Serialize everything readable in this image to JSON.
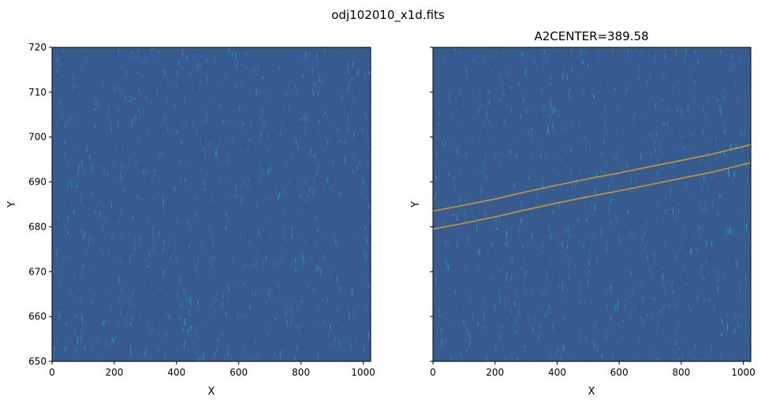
{
  "figure": {
    "suptitle": "odj102010_x1d.fits"
  },
  "colors": {
    "background_field": "#375b8f",
    "noise_cyan": "#1fa6c9",
    "noise_dark": "#2d4d80",
    "trace_line": "#c8963a"
  },
  "chart_data": [
    {
      "type": "heatmap",
      "title": "",
      "xlabel": "X",
      "ylabel": "Y",
      "xlim": [
        0,
        1024
      ],
      "ylim": [
        650,
        720
      ],
      "x_ticks": [
        0,
        200,
        400,
        600,
        800,
        1000
      ],
      "y_ticks": [
        650,
        660,
        670,
        680,
        690,
        700,
        710,
        720
      ],
      "x_tick_labels": [
        "0",
        "200",
        "400",
        "600",
        "800",
        "1000"
      ],
      "y_tick_labels": [
        "650",
        "660",
        "670",
        "680",
        "690",
        "700",
        "710",
        "720"
      ],
      "grid": false,
      "colormap": "viridis",
      "series": []
    },
    {
      "type": "heatmap",
      "title": "A2CENTER=389.58",
      "xlabel": "X",
      "ylabel": "Y",
      "xlim": [
        0,
        1024
      ],
      "ylim": [
        650,
        720
      ],
      "x_ticks": [
        0,
        200,
        400,
        600,
        800,
        1000
      ],
      "y_ticks": [
        650,
        660,
        670,
        680,
        690,
        700,
        710,
        720
      ],
      "x_tick_labels": [
        "0",
        "200",
        "400",
        "600",
        "800",
        "1000"
      ],
      "y_tick_labels": [
        "",
        "",
        "",
        "",
        "",
        "",
        "",
        ""
      ],
      "grid": false,
      "colormap": "viridis",
      "series": [
        {
          "type": "line",
          "color": "#c8963a",
          "x": [
            0,
            100,
            200,
            300,
            400,
            500,
            600,
            700,
            800,
            900,
            1024
          ],
          "y": [
            683.5,
            684.8,
            686.2,
            687.8,
            689.3,
            690.7,
            692.0,
            693.4,
            694.8,
            696.2,
            698.3
          ]
        },
        {
          "type": "line",
          "color": "#c8963a",
          "x": [
            0,
            100,
            200,
            300,
            400,
            500,
            600,
            700,
            800,
            900,
            1024
          ],
          "y": [
            679.5,
            680.8,
            682.2,
            683.8,
            685.3,
            686.7,
            688.0,
            689.4,
            690.8,
            692.2,
            694.3
          ]
        }
      ]
    }
  ]
}
